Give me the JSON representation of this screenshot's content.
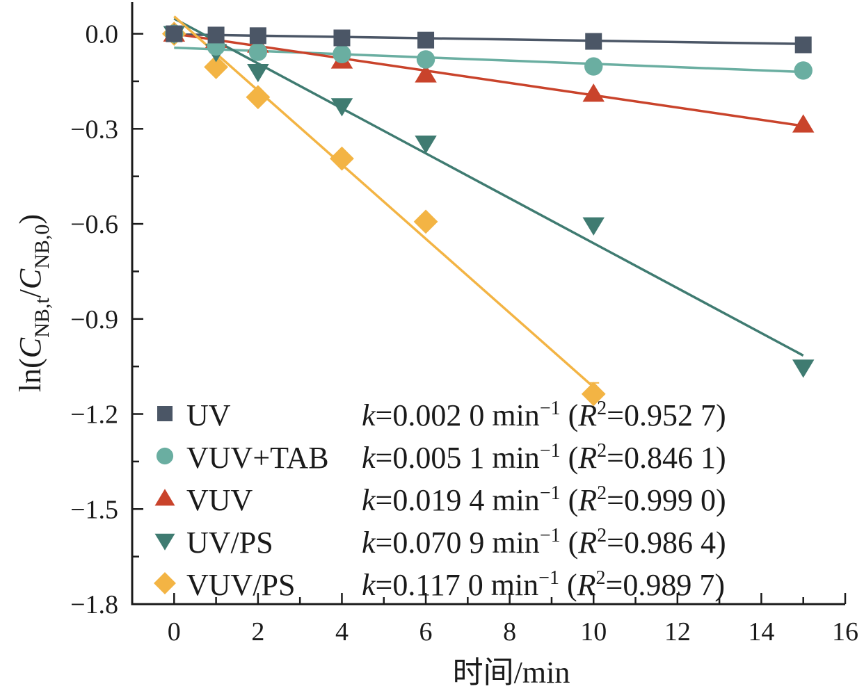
{
  "chart_data": {
    "type": "scatter",
    "title": "",
    "xlabel": "时间/min",
    "ylabel": {
      "prefix": "ln(",
      "num_var": "C",
      "num_sub": "NB,t",
      "slash": "/",
      "den_var": "C",
      "den_sub": "NB,0",
      "suffix": ")"
    },
    "xlim": [
      -1,
      16
    ],
    "ylim": [
      -1.8,
      0.1
    ],
    "xticks": [
      0,
      2,
      4,
      6,
      8,
      10,
      12,
      14,
      16
    ],
    "xtick_labels": [
      "0",
      "2",
      "4",
      "6",
      "8",
      "10",
      "12",
      "14",
      "16"
    ],
    "yticks": [
      0.0,
      -0.3,
      -0.6,
      -0.9,
      -1.2,
      -1.5,
      -1.8
    ],
    "ytick_labels": [
      "0.0",
      "−0.3",
      "−0.6",
      "−0.9",
      "−1.2",
      "−1.5",
      "−1.8"
    ],
    "grid": false,
    "legend_position": "bottom-left",
    "series": [
      {
        "name": "UV",
        "marker": "square",
        "color": "#4b5666",
        "x": [
          0,
          1,
          2,
          4,
          6,
          10,
          15
        ],
        "y": [
          0.0,
          -0.004,
          -0.006,
          -0.013,
          -0.02,
          -0.024,
          -0.035
        ],
        "fit": {
          "k": "0.002 0",
          "R2": "0.952 7",
          "intercept": -0.002,
          "slope": -0.002,
          "x_range": [
            0,
            15
          ]
        }
      },
      {
        "name": "VUV+TAB",
        "marker": "circle",
        "color": "#6aaea1",
        "x": [
          0,
          1,
          2,
          4,
          6,
          10,
          15
        ],
        "y": [
          0.0,
          -0.04,
          -0.057,
          -0.064,
          -0.081,
          -0.103,
          -0.116
        ],
        "fit": {
          "k": "0.005 1",
          "R2": "0.846 1",
          "intercept": -0.044,
          "slope": -0.0051,
          "x_range": [
            0,
            15
          ]
        }
      },
      {
        "name": "VUV",
        "marker": "triangle-up",
        "color": "#c9432b",
        "x": [
          0,
          1,
          2,
          4,
          6,
          10,
          15
        ],
        "y": [
          0.0,
          -0.02,
          -0.035,
          -0.085,
          -0.129,
          -0.19,
          -0.287
        ],
        "fit": {
          "k": "0.019 4",
          "R2": "0.999 0",
          "intercept": 0.0,
          "slope": -0.0194,
          "x_range": [
            0,
            15
          ]
        }
      },
      {
        "name": "UV/PS",
        "marker": "triangle-down",
        "color": "#3f7b71",
        "x": [
          0,
          1,
          2,
          4,
          6,
          10,
          15
        ],
        "y": [
          0.0,
          -0.057,
          -0.12,
          -0.228,
          -0.346,
          -0.604,
          -1.053
        ],
        "fit": {
          "k": "0.070 9",
          "R2": "0.986 4",
          "intercept": 0.048,
          "slope": -0.0709,
          "x_range": [
            0,
            15
          ]
        }
      },
      {
        "name": "VUV/PS",
        "marker": "diamond",
        "color": "#f3b444",
        "x": [
          0,
          1,
          2,
          4,
          6,
          10
        ],
        "y": [
          0.0,
          -0.105,
          -0.2,
          -0.394,
          -0.593,
          -1.137
        ],
        "fit": {
          "k": "0.117 0",
          "R2": "0.989 7",
          "intercept": 0.055,
          "slope": -0.117,
          "x_range": [
            0,
            10
          ]
        }
      }
    ],
    "legend_text": {
      "k_symbol": "k",
      "equals": "=",
      "unit": " min",
      "unit_exp": "−1",
      "r_open": " (",
      "r_symbol": "R",
      "r_exp": "2",
      "r_close": ")"
    }
  }
}
